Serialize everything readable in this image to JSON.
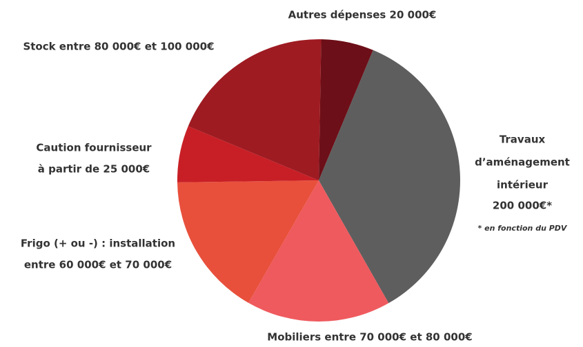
{
  "chart_data": {
    "type": "pie",
    "categories": [
      [
        "Autres dépenses 20 000€"
      ],
      [
        "Travaux",
        "d’aménagement",
        "intérieur",
        "200 000€*"
      ],
      [
        "Mobiliers entre 70 000€ et 80 000€"
      ],
      [
        "Frigo (+ ou -) : installation",
        "entre 60 000€ et 70 000€"
      ],
      [
        "Caution fournisseur",
        "à partir de 25 000€"
      ],
      [
        "Stock entre 80 000€ et 100 000€"
      ]
    ],
    "values": [
      6,
      35.5,
      16.5,
      16.5,
      6.5,
      19
    ],
    "colors": [
      "#6d0f18",
      "#5e5e5e",
      "#ef5a5e",
      "#e8503c",
      "#c81f26",
      "#9e1b22"
    ],
    "note": "* en fonction du PDV"
  }
}
